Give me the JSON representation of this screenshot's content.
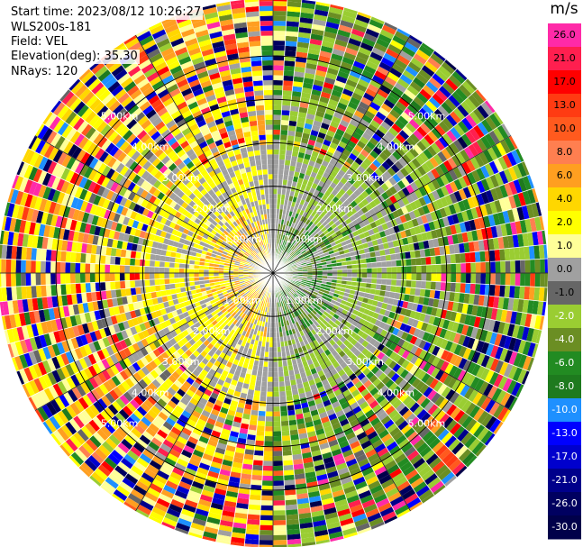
{
  "header": {
    "start_time": "Start time: 2023/08/12 10:26:27",
    "instrument": "WLS200s-181",
    "field": "Field: VEL",
    "elevation": "Elevation(deg): 35.30",
    "nrays": "NRays: 120"
  },
  "colorbar": {
    "unit": "m/s",
    "ticks": [
      "26.0",
      "21.0",
      "17.0",
      "13.0",
      "10.0",
      "8.0",
      "6.0",
      "4.0",
      "2.0",
      "1.0",
      "0.0",
      "-1.0",
      "-2.0",
      "-4.0",
      "-6.0",
      "-8.0",
      "-10.0",
      "-13.0",
      "-17.0",
      "-21.0",
      "-26.0",
      "-30.0"
    ],
    "colors": [
      "#ff2aa8",
      "#ff1f4f",
      "#ff0000",
      "#ff3b12",
      "#ff5a1e",
      "#ff7f50",
      "#ff9f20",
      "#ffd700",
      "#ffff00",
      "#ffff99",
      "#a0a0a0",
      "#666666",
      "#9acd32",
      "#6b8e23",
      "#228b22",
      "#1e7a1e",
      "#1e90ff",
      "#0000ff",
      "#0000cd",
      "#00008b",
      "#000060",
      "#00004a"
    ]
  },
  "chart_data": {
    "type": "heatmap",
    "description_kind": "ppi_radial_velocity",
    "field": "VEL",
    "unit": "m/s",
    "nrays": 120,
    "range_rings_km": [
      1.0,
      2.0,
      3.0,
      4.0,
      5.0
    ],
    "ring_labels": {
      "1": "1.00km",
      "2": "2.00km",
      "3": "3.00km",
      "4": "4.00km",
      "5": "5.00km"
    },
    "max_range_km": 5.0
  }
}
